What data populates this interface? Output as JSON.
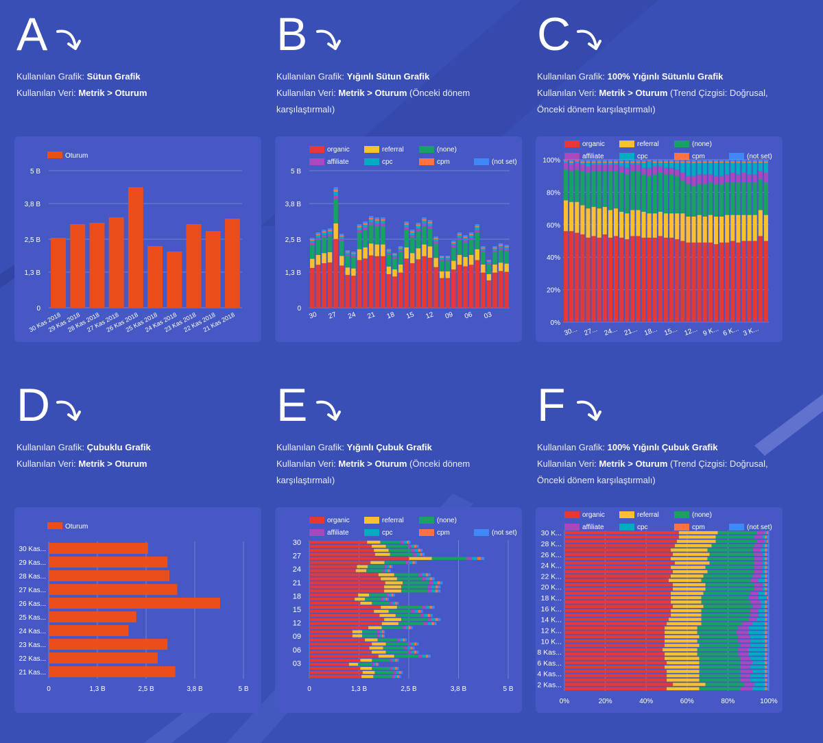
{
  "colors": {
    "organic": "#e53935",
    "referral": "#fbc02d",
    "none": "#17a162",
    "affiliate": "#ab47bc",
    "cpc": "#00acc1",
    "cpm": "#ff7043",
    "notset": "#3f88f5",
    "single": "#e94e1b"
  },
  "legend_items": [
    "organic",
    "referral",
    "(none)",
    "affiliate",
    "cpc",
    "cpm",
    "(not set)"
  ],
  "sections": [
    {
      "letter": "A",
      "label1": "Kullanılan Grafik: ",
      "bold1": "Sütun Grafik",
      "label2": "Kullanılan Veri: ",
      "bold2": "Metrik > Oturum",
      "rest2": ""
    },
    {
      "letter": "B",
      "label1": "Kullanılan Grafik: ",
      "bold1": "Yığınlı Sütun Grafik",
      "label2": "Kullanılan Veri: ",
      "bold2": "Metrik > Oturum",
      "rest2": " (Önceki dönem karşılaştırmalı)"
    },
    {
      "letter": "C",
      "label1": "Kullanılan Grafik: ",
      "bold1": "100% Yığınlı Sütunlu Grafik",
      "label2": "Kullanılan Veri: ",
      "bold2": "Metrik > Oturum",
      "rest2": " (Trend Çizgisi: Doğrusal, Önceki dönem karşılaştırmalı)"
    },
    {
      "letter": "D",
      "label1": "Kullanılan Grafik: ",
      "bold1": "Çubuklu Grafik",
      "label2": "Kullanılan Veri: ",
      "bold2": "Metrik > Oturum",
      "rest2": ""
    },
    {
      "letter": "E",
      "label1": "Kullanılan Grafik: ",
      "bold1": "Yığınlı Çubuk Grafik",
      "label2": "Kullanılan Veri: ",
      "bold2": "Metrik > Oturum",
      "rest2": " (Önceki dönem karşılaştırmalı)"
    },
    {
      "letter": "F",
      "label1": "Kullanılan Grafik: ",
      "bold1": "100% Yığınlı Çubuk Grafik",
      "label2": "Kullanılan Veri: ",
      "bold2": "Metrik > Oturum",
      "rest2": " (Trend Çizgisi: Doğrusal, Önceki dönem karşılaştırmalı)"
    }
  ],
  "chart_data": [
    {
      "id": "A",
      "type": "bar",
      "legend": "Oturum",
      "categories": [
        "30 Kas 2018",
        "29 Kas 2018",
        "28 Kas 2018",
        "27 Kas 2018",
        "26 Kas 2018",
        "25 Kas 2018",
        "24 Kas 2018",
        "23 Kas 2018",
        "22 Kas 2018",
        "21 Kas 2018"
      ],
      "values": [
        2.55,
        3.05,
        3.1,
        3.3,
        4.4,
        2.25,
        2.05,
        3.05,
        2.8,
        3.25
      ],
      "ylim": [
        0,
        5
      ],
      "yticks": [
        0,
        1.3,
        2.5,
        3.8,
        5
      ],
      "yticklabels": [
        "0",
        "1,3 B",
        "2,5 B",
        "3,8 B",
        "5 B"
      ]
    },
    {
      "id": "B",
      "type": "bar",
      "stacked": true,
      "ylim": [
        0,
        5
      ],
      "yticks": [
        0,
        1.3,
        2.5,
        3.8,
        5
      ],
      "yticklabels": [
        "0",
        "1,3 B",
        "2,5 B",
        "3,8 B",
        "5 B"
      ],
      "xticklabels": [
        "30",
        "27",
        "24",
        "21",
        "18",
        "15",
        "12",
        "09",
        "06",
        "03"
      ],
      "totals": [
        2.55,
        2.75,
        2.85,
        2.9,
        4.4,
        2.7,
        2.1,
        2.05,
        3.05,
        3.15,
        3.35,
        3.3,
        3.3,
        2.15,
        2.0,
        2.25,
        3.15,
        2.85,
        3.1,
        3.3,
        3.2,
        2.6,
        1.9,
        1.9,
        2.45,
        2.75,
        2.65,
        2.75,
        3.05,
        2.25,
        1.75,
        2.25,
        2.35,
        2.3
      ],
      "shares": [
        0.57,
        0.13,
        0.2,
        0.03,
        0.03,
        0.02,
        0.02
      ],
      "series": [
        "organic",
        "referral",
        "(none)",
        "affiliate",
        "cpc",
        "cpm",
        "(not set)"
      ]
    },
    {
      "id": "C",
      "type": "bar",
      "stacked": true,
      "normalized": true,
      "ylim": [
        0,
        100
      ],
      "yticklabels": [
        "0%",
        "20%",
        "40%",
        "60%",
        "80%",
        "100%"
      ],
      "xticklabels": [
        "30...",
        "27...",
        "24...",
        "21...",
        "18...",
        "15...",
        "12...",
        "9 K...",
        "6 K...",
        "3 K..."
      ],
      "organic": [
        56,
        56,
        55,
        54,
        52,
        53,
        52,
        54,
        52,
        53,
        52,
        51,
        53,
        53,
        52,
        52,
        52,
        53,
        52,
        52,
        51,
        50,
        49,
        49,
        49,
        49,
        49,
        48,
        49,
        49,
        50,
        49,
        50,
        50,
        50,
        53,
        50
      ],
      "referral": [
        19,
        18,
        19,
        18,
        18,
        18,
        18,
        17,
        17,
        17,
        16,
        16,
        16,
        16,
        16,
        15,
        15,
        15,
        15,
        15,
        16,
        17,
        16,
        16,
        17,
        16,
        17,
        17,
        16,
        17,
        16,
        17,
        16,
        16,
        16,
        16,
        16
      ],
      "none": [
        19,
        19,
        20,
        21,
        22,
        22,
        23,
        22,
        24,
        23,
        24,
        24,
        24,
        24,
        23,
        23,
        24,
        24,
        24,
        24,
        23,
        20,
        20,
        19,
        19,
        20,
        20,
        20,
        20,
        20,
        20,
        20,
        20,
        20,
        20,
        19,
        20
      ],
      "affiliate": [
        4,
        4,
        4,
        4,
        4,
        4,
        4,
        4,
        4,
        4,
        4,
        4,
        4,
        4,
        4,
        5,
        5,
        4,
        4,
        4,
        4,
        5,
        5,
        6,
        6,
        6,
        5,
        5,
        5,
        5,
        6,
        5,
        6,
        5,
        5,
        5,
        6
      ],
      "cpc": [
        1,
        1,
        1,
        1,
        2,
        1,
        1,
        1,
        1,
        1,
        2,
        3,
        1,
        1,
        3,
        4,
        2,
        2,
        3,
        3,
        4,
        6,
        8,
        8,
        7,
        7,
        7,
        8,
        8,
        7,
        6,
        7,
        6,
        7,
        7,
        5,
        6
      ],
      "cpm": [
        0.5,
        1,
        0.5,
        1,
        1,
        1,
        1,
        1,
        1,
        1,
        1,
        1,
        1,
        1,
        1,
        0.5,
        1,
        1,
        1,
        1,
        1,
        1,
        1,
        1,
        1,
        1,
        1,
        1,
        1,
        1,
        1,
        1,
        1,
        1,
        1,
        1,
        1
      ],
      "notset": [
        0.5,
        1,
        0.5,
        1,
        1,
        1,
        1,
        1,
        1,
        1,
        1,
        1,
        1,
        1,
        1,
        0.5,
        1,
        1,
        1,
        1,
        1,
        1,
        1,
        1,
        1,
        1,
        1,
        1,
        1,
        1,
        1,
        1,
        1,
        1,
        1,
        1,
        1
      ]
    },
    {
      "id": "D",
      "type": "bar",
      "orientation": "horizontal",
      "legend": "Oturum",
      "categories": [
        "30 Kas...",
        "29 Kas...",
        "28 Kas...",
        "27 Kas...",
        "26 Kas...",
        "25 Kas...",
        "24 Kas...",
        "23 Kas...",
        "22 Kas...",
        "21 Kas..."
      ],
      "values": [
        2.55,
        3.05,
        3.1,
        3.3,
        4.4,
        2.25,
        2.05,
        3.05,
        2.8,
        3.25
      ],
      "xlim": [
        0,
        5
      ],
      "xticklabels": [
        "0",
        "1,3 B",
        "2,5 B",
        "3,8 B",
        "5 B"
      ]
    },
    {
      "id": "E",
      "type": "bar",
      "orientation": "horizontal",
      "stacked": true,
      "xlim": [
        0,
        5
      ],
      "xticklabels": [
        "0",
        "1,3 B",
        "2,5 B",
        "3,8 B",
        "5 B"
      ],
      "yticklabels": [
        "30",
        "27",
        "24",
        "21",
        "18",
        "15",
        "12",
        "09",
        "06",
        "03"
      ],
      "totals": [
        2.55,
        2.75,
        2.85,
        2.9,
        4.4,
        2.7,
        2.1,
        2.05,
        3.05,
        3.15,
        3.35,
        3.3,
        3.3,
        2.15,
        2.0,
        2.25,
        3.15,
        2.85,
        3.1,
        3.3,
        3.2,
        2.6,
        1.9,
        1.9,
        2.45,
        2.75,
        2.65,
        2.75,
        3.05,
        2.25,
        1.75,
        2.25,
        2.35,
        2.3
      ],
      "shares": [
        0.57,
        0.13,
        0.2,
        0.03,
        0.03,
        0.02,
        0.02
      ],
      "series": [
        "organic",
        "referral",
        "(none)",
        "affiliate",
        "cpc",
        "cpm",
        "(not set)"
      ]
    },
    {
      "id": "F",
      "type": "bar",
      "orientation": "horizontal",
      "stacked": true,
      "normalized": true,
      "xlim": [
        0,
        100
      ],
      "xticklabels": [
        "0%",
        "20%",
        "40%",
        "60%",
        "80%",
        "100%"
      ],
      "yticklabels": [
        "30 K...",
        "28 K...",
        "26 K...",
        "24 K...",
        "22 K...",
        "20 K...",
        "18 K...",
        "16 K...",
        "14 K...",
        "12 K...",
        "10 K...",
        "8 Kas...",
        "6 Kas...",
        "4 Kas...",
        "2 Kas..."
      ],
      "organic": [
        56,
        56,
        55,
        54,
        52,
        53,
        52,
        54,
        52,
        53,
        52,
        51,
        53,
        53,
        52,
        52,
        52,
        53,
        52,
        52,
        51,
        50,
        49,
        49,
        49,
        49,
        49,
        48,
        49,
        49,
        50,
        49,
        50,
        50,
        50,
        53,
        50
      ],
      "referral": [
        19,
        18,
        19,
        18,
        18,
        18,
        18,
        17,
        17,
        17,
        16,
        16,
        16,
        16,
        16,
        15,
        15,
        15,
        15,
        15,
        16,
        17,
        16,
        16,
        17,
        16,
        17,
        17,
        16,
        17,
        16,
        17,
        16,
        16,
        16,
        16,
        16
      ],
      "none": [
        19,
        19,
        20,
        21,
        22,
        22,
        23,
        22,
        24,
        23,
        24,
        24,
        24,
        24,
        23,
        23,
        24,
        24,
        24,
        24,
        23,
        20,
        20,
        19,
        19,
        20,
        20,
        20,
        20,
        20,
        20,
        20,
        20,
        20,
        20,
        19,
        20
      ],
      "affiliate": [
        4,
        4,
        4,
        4,
        4,
        4,
        4,
        4,
        4,
        4,
        4,
        4,
        4,
        4,
        4,
        5,
        5,
        4,
        4,
        4,
        4,
        5,
        5,
        6,
        6,
        6,
        5,
        5,
        5,
        5,
        6,
        5,
        6,
        5,
        5,
        5,
        6
      ],
      "cpc": [
        1,
        1,
        1,
        1,
        2,
        1,
        1,
        1,
        1,
        1,
        2,
        3,
        1,
        1,
        3,
        4,
        2,
        2,
        3,
        3,
        4,
        6,
        8,
        8,
        7,
        7,
        7,
        8,
        8,
        7,
        6,
        7,
        6,
        7,
        7,
        5,
        6
      ],
      "cpm": [
        0.5,
        1,
        0.5,
        1,
        1,
        1,
        1,
        1,
        1,
        1,
        1,
        1,
        1,
        1,
        1,
        0.5,
        1,
        1,
        1,
        1,
        1,
        1,
        1,
        1,
        1,
        1,
        1,
        1,
        1,
        1,
        1,
        1,
        1,
        1,
        1,
        1,
        1
      ],
      "notset": [
        0.5,
        1,
        0.5,
        1,
        1,
        1,
        1,
        1,
        1,
        1,
        1,
        1,
        1,
        1,
        1,
        0.5,
        1,
        1,
        1,
        1,
        1,
        1,
        1,
        1,
        1,
        1,
        1,
        1,
        1,
        1,
        1,
        1,
        1,
        1,
        1,
        1,
        1
      ]
    }
  ]
}
